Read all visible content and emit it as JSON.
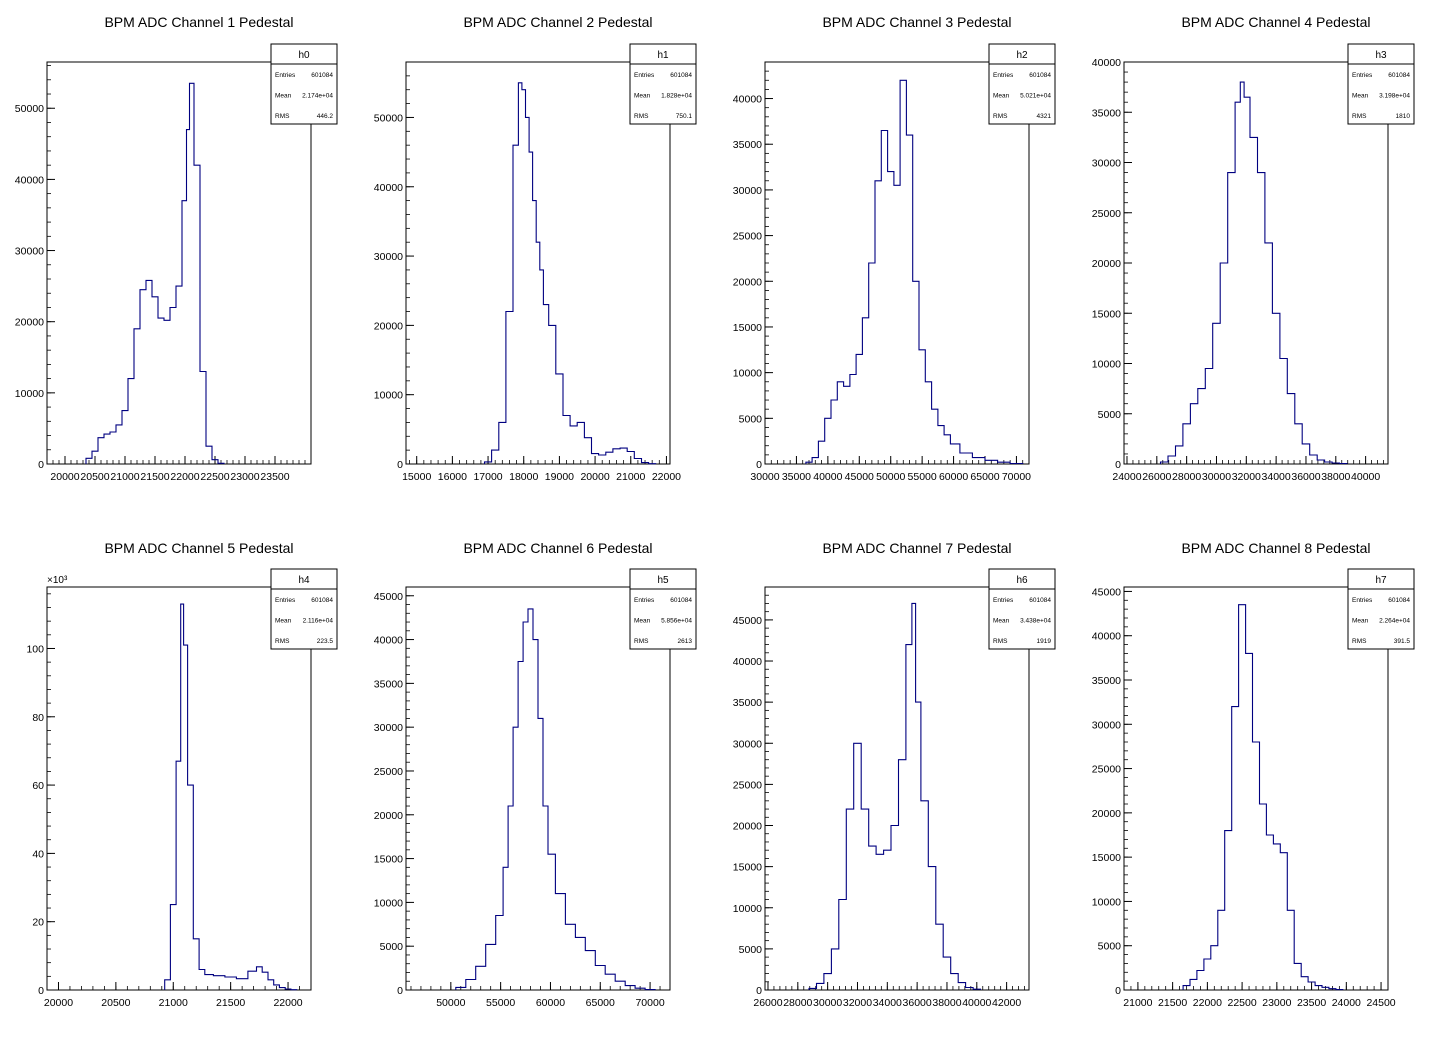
{
  "chart_data": [
    {
      "type": "histogram",
      "name": "h0",
      "title": "BPM ADC Channel 1 Pedestal",
      "xlim": [
        19700,
        24100
      ],
      "ylim": [
        0,
        56500
      ],
      "xticks": [
        20000,
        20500,
        21000,
        21500,
        22000,
        22500,
        23000,
        23500
      ],
      "xtick_labels": [
        "20000",
        "20500",
        "21000",
        "21500",
        "22000",
        "22500",
        "23000",
        "23500"
      ],
      "yticks": [
        0,
        10000,
        20000,
        30000,
        40000,
        50000
      ],
      "ytick_labels": [
        "0",
        "10000",
        "20000",
        "30000",
        "40000",
        "50000"
      ],
      "y_multiplier": "",
      "stats": {
        "Entries": "601084",
        "Mean": "2.174e+04",
        "RMS": "446.2"
      },
      "x": [
        20400,
        20500,
        20600,
        20700,
        20800,
        20900,
        21000,
        21100,
        21200,
        21300,
        21400,
        21500,
        21600,
        21700,
        21800,
        21900,
        22000,
        22050,
        22100,
        22200,
        22300,
        22400,
        22500,
        22600
      ],
      "y": [
        800,
        1800,
        3700,
        4200,
        4500,
        5500,
        7500,
        12000,
        19000,
        24500,
        25800,
        23500,
        20500,
        20200,
        22000,
        25000,
        37000,
        47000,
        53500,
        42000,
        13000,
        2500,
        600,
        100
      ]
    },
    {
      "type": "histogram",
      "name": "h1",
      "title": "BPM ADC Channel 2 Pedestal",
      "xlim": [
        14700,
        22100
      ],
      "ylim": [
        0,
        58000
      ],
      "xticks": [
        15000,
        16000,
        17000,
        18000,
        19000,
        20000,
        21000,
        22000
      ],
      "xtick_labels": [
        "15000",
        "16000",
        "17000",
        "18000",
        "19000",
        "20000",
        "21000",
        "22000"
      ],
      "yticks": [
        0,
        10000,
        20000,
        30000,
        40000,
        50000
      ],
      "ytick_labels": [
        "0",
        "10000",
        "20000",
        "30000",
        "40000",
        "50000"
      ],
      "y_multiplier": "",
      "stats": {
        "Entries": "601084",
        "Mean": "1.828e+04",
        "RMS": "750.1"
      },
      "x": [
        17000,
        17200,
        17400,
        17600,
        17800,
        17900,
        18000,
        18100,
        18200,
        18300,
        18400,
        18500,
        18600,
        18800,
        19000,
        19200,
        19400,
        19600,
        19800,
        20000,
        20200,
        20400,
        20600,
        20800,
        21000,
        21200,
        21400,
        21600
      ],
      "y": [
        300,
        2000,
        6000,
        22000,
        46000,
        55000,
        54000,
        50000,
        45000,
        38000,
        32000,
        28000,
        23000,
        20000,
        13000,
        7000,
        5500,
        6000,
        3800,
        1500,
        1300,
        1700,
        2200,
        2300,
        1800,
        800,
        200,
        50
      ]
    },
    {
      "type": "histogram",
      "name": "h2",
      "title": "BPM ADC Channel 3 Pedestal",
      "xlim": [
        30000,
        72000
      ],
      "ylim": [
        0,
        44000
      ],
      "xticks": [
        30000,
        35000,
        40000,
        45000,
        50000,
        55000,
        60000,
        65000,
        70000
      ],
      "xtick_labels": [
        "30000",
        "35000",
        "40000",
        "45000",
        "50000",
        "55000",
        "60000",
        "65000",
        "70000"
      ],
      "yticks": [
        0,
        5000,
        10000,
        15000,
        20000,
        25000,
        30000,
        35000,
        40000
      ],
      "ytick_labels": [
        "0",
        "5000",
        "10000",
        "15000",
        "20000",
        "25000",
        "30000",
        "35000",
        "40000"
      ],
      "y_multiplier": "",
      "stats": {
        "Entries": "601084",
        "Mean": "5.021e+04",
        "RMS": "4321"
      },
      "x": [
        37000,
        38000,
        39000,
        40000,
        41000,
        42000,
        43000,
        44000,
        45000,
        46000,
        47000,
        48000,
        49000,
        50000,
        51000,
        52000,
        53000,
        54000,
        55000,
        56000,
        57000,
        58000,
        59000,
        60000,
        62000,
        64000,
        66000,
        68000,
        70000
      ],
      "y": [
        200,
        700,
        2500,
        5000,
        7000,
        9000,
        8500,
        9800,
        12000,
        16000,
        22000,
        31000,
        36500,
        32000,
        30500,
        42000,
        36000,
        20000,
        12500,
        9000,
        6000,
        4200,
        3200,
        2200,
        1200,
        700,
        400,
        200,
        50
      ]
    },
    {
      "type": "histogram",
      "name": "h3",
      "title": "BPM ADC Channel 4 Pedestal",
      "xlim": [
        23800,
        41500
      ],
      "ylim": [
        0,
        40000
      ],
      "xticks": [
        24000,
        26000,
        28000,
        30000,
        32000,
        34000,
        36000,
        38000,
        40000
      ],
      "xtick_labels": [
        "24000",
        "26000",
        "28000",
        "30000",
        "32000",
        "34000",
        "36000",
        "38000",
        "40000"
      ],
      "yticks": [
        0,
        5000,
        10000,
        15000,
        20000,
        25000,
        30000,
        35000,
        40000
      ],
      "ytick_labels": [
        "0",
        "5000",
        "10000",
        "15000",
        "20000",
        "25000",
        "30000",
        "35000",
        "40000"
      ],
      "y_multiplier": "",
      "stats": {
        "Entries": "601084",
        "Mean": "3.198e+04",
        "RMS": "1810"
      },
      "x": [
        26500,
        27000,
        27500,
        28000,
        28500,
        29000,
        29500,
        30000,
        30500,
        31000,
        31500,
        31700,
        32000,
        32500,
        33000,
        33500,
        34000,
        34500,
        35000,
        35500,
        36000,
        36500,
        37000,
        37500,
        38000,
        38500
      ],
      "y": [
        200,
        800,
        1800,
        4000,
        6000,
        7500,
        9500,
        14000,
        20000,
        29000,
        36000,
        38000,
        36500,
        32500,
        29000,
        22000,
        15000,
        10500,
        7000,
        4000,
        2000,
        900,
        400,
        200,
        100,
        50
      ]
    },
    {
      "type": "histogram",
      "name": "h4",
      "title": "BPM ADC Channel 5 Pedestal",
      "xlim": [
        19900,
        22200
      ],
      "ylim": [
        0,
        118000
      ],
      "xticks": [
        20000,
        20500,
        21000,
        21500,
        22000
      ],
      "xtick_labels": [
        "20000",
        "20500",
        "21000",
        "21500",
        "22000"
      ],
      "yticks": [
        0,
        20000,
        40000,
        60000,
        80000,
        100000
      ],
      "ytick_labels": [
        "0",
        "20",
        "40",
        "60",
        "80",
        "100"
      ],
      "y_multiplier": "×10³",
      "stats": {
        "Entries": "601084",
        "Mean": "2.116e+04",
        "RMS": "223.5"
      },
      "x": [
        20950,
        21000,
        21050,
        21080,
        21100,
        21150,
        21200,
        21250,
        21300,
        21400,
        21500,
        21600,
        21700,
        21750,
        21800,
        21850,
        21900,
        21950,
        22000,
        22050
      ],
      "y": [
        3000,
        25000,
        67000,
        113000,
        101000,
        60000,
        15000,
        6000,
        4500,
        4200,
        3800,
        3300,
        5500,
        6800,
        5200,
        3000,
        1500,
        700,
        300,
        100
      ]
    },
    {
      "type": "histogram",
      "name": "h5",
      "title": "BPM ADC Channel 6 Pedestal",
      "xlim": [
        45500,
        72000
      ],
      "ylim": [
        0,
        46000
      ],
      "xticks": [
        50000,
        55000,
        60000,
        65000,
        70000
      ],
      "xtick_labels": [
        "50000",
        "55000",
        "60000",
        "65000",
        "70000"
      ],
      "yticks": [
        0,
        5000,
        10000,
        15000,
        20000,
        25000,
        30000,
        35000,
        40000,
        45000
      ],
      "ytick_labels": [
        "0",
        "5000",
        "10000",
        "15000",
        "20000",
        "25000",
        "30000",
        "35000",
        "40000",
        "45000"
      ],
      "y_multiplier": "",
      "stats": {
        "Entries": "601084",
        "Mean": "5.856e+04",
        "RMS": "2613"
      },
      "x": [
        51000,
        52000,
        53000,
        54000,
        55000,
        55500,
        56000,
        56500,
        57000,
        57500,
        58000,
        58500,
        59000,
        59500,
        60000,
        61000,
        62000,
        63000,
        64000,
        65000,
        66000,
        67000,
        68000,
        69000,
        70000
      ],
      "y": [
        300,
        1200,
        2700,
        5200,
        8500,
        14000,
        21000,
        30000,
        37500,
        42000,
        43500,
        40000,
        31000,
        21000,
        15500,
        11000,
        7500,
        6000,
        4500,
        2800,
        1800,
        1000,
        500,
        200,
        50
      ]
    },
    {
      "type": "histogram",
      "name": "h6",
      "title": "BPM ADC Channel 7 Pedestal",
      "xlim": [
        25800,
        43500
      ],
      "ylim": [
        0,
        49000
      ],
      "xticks": [
        26000,
        28000,
        30000,
        32000,
        34000,
        36000,
        38000,
        40000,
        42000
      ],
      "xtick_labels": [
        "26000",
        "28000",
        "30000",
        "32000",
        "34000",
        "36000",
        "38000",
        "40000",
        "42000"
      ],
      "yticks": [
        0,
        5000,
        10000,
        15000,
        20000,
        25000,
        30000,
        35000,
        40000,
        45000
      ],
      "ytick_labels": [
        "0",
        "5000",
        "10000",
        "15000",
        "20000",
        "25000",
        "30000",
        "35000",
        "40000",
        "45000"
      ],
      "y_multiplier": "",
      "stats": {
        "Entries": "601084",
        "Mean": "3.438e+04",
        "RMS": "1919"
      },
      "x": [
        29000,
        29500,
        30000,
        30500,
        31000,
        31500,
        32000,
        32500,
        33000,
        33500,
        34000,
        34500,
        35000,
        35500,
        35800,
        36000,
        36500,
        37000,
        37500,
        38000,
        38500,
        39000,
        39500,
        40000
      ],
      "y": [
        200,
        800,
        2000,
        5000,
        11000,
        22000,
        30000,
        22000,
        17500,
        16500,
        17000,
        20000,
        28000,
        42000,
        47000,
        35000,
        23000,
        15000,
        8000,
        4000,
        2000,
        900,
        300,
        100
      ]
    },
    {
      "type": "histogram",
      "name": "h7",
      "title": "BPM ADC Channel 8 Pedestal",
      "xlim": [
        20800,
        24600
      ],
      "ylim": [
        0,
        45500
      ],
      "xticks": [
        21000,
        21500,
        22000,
        22500,
        23000,
        23500,
        24000,
        24500
      ],
      "xtick_labels": [
        "21000",
        "21500",
        "22000",
        "22500",
        "23000",
        "23500",
        "24000",
        "24500"
      ],
      "yticks": [
        0,
        5000,
        10000,
        15000,
        20000,
        25000,
        30000,
        35000,
        40000,
        45000
      ],
      "ytick_labels": [
        "0",
        "5000",
        "10000",
        "15000",
        "20000",
        "25000",
        "30000",
        "35000",
        "40000",
        "45000"
      ],
      "y_multiplier": "",
      "stats": {
        "Entries": "601084",
        "Mean": "2.264e+04",
        "RMS": "391.5"
      },
      "x": [
        21700,
        21800,
        21900,
        22000,
        22100,
        22200,
        22300,
        22400,
        22500,
        22600,
        22700,
        22800,
        22900,
        23000,
        23100,
        23200,
        23300,
        23400,
        23500,
        23600,
        23700,
        23800,
        23900
      ],
      "y": [
        500,
        1200,
        2200,
        3500,
        5000,
        9000,
        18000,
        32000,
        43500,
        38000,
        28000,
        21000,
        17500,
        16500,
        15500,
        9000,
        3000,
        1500,
        900,
        500,
        300,
        150,
        50
      ]
    }
  ],
  "colors": {
    "line": "#000080",
    "frame": "#000000",
    "background": "#ffffff"
  }
}
